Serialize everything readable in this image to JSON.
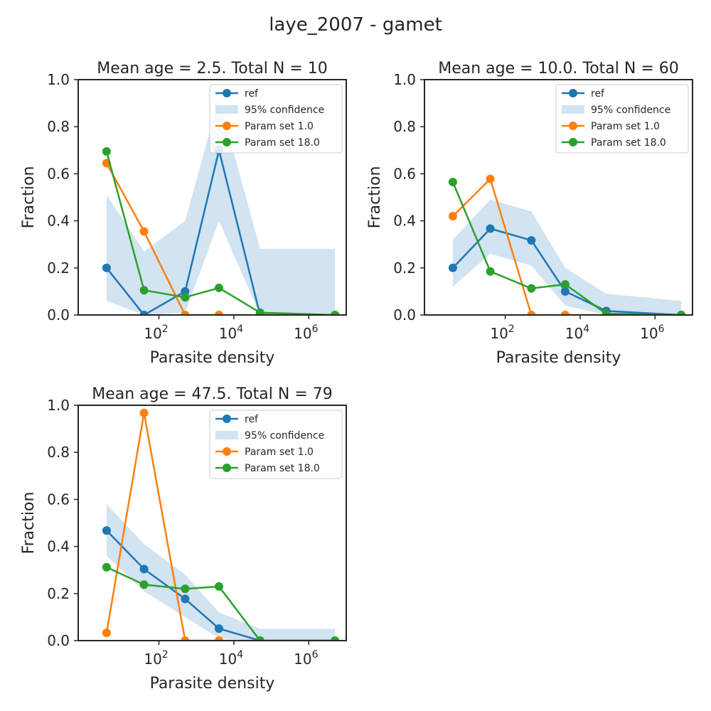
{
  "suptitle": "laye_2007 - gamet",
  "colors": {
    "ref": "#1f77b4",
    "band": "#b7d2e8",
    "param1": "#ff7f0e",
    "param18": "#2ca02c",
    "axis": "#262626"
  },
  "chart_data": [
    {
      "type": "line",
      "title": "Mean age = 2.5.  Total N = 10",
      "xlabel": "Parasite density",
      "ylabel": "Fraction",
      "xscale": "log",
      "xlim": [
        0.7,
        10000000
      ],
      "ylim": [
        0,
        1
      ],
      "xticks": [
        "10^2",
        "10^4",
        "10^6"
      ],
      "yticks": [
        "0.0",
        "0.2",
        "0.4",
        "0.6",
        "0.8",
        "1.0"
      ],
      "x": [
        4,
        40,
        500,
        4000,
        50000,
        5000000
      ],
      "legend": {
        "position": "top-right",
        "entries": [
          "ref",
          "95% confidence",
          "Param set 1.0",
          "Param set 18.0"
        ]
      },
      "series": [
        {
          "name": "ref",
          "values": [
            0.2,
            0.0,
            0.1,
            0.7,
            0.0,
            0.0
          ]
        },
        {
          "name": "95% confidence",
          "lower": [
            0.06,
            0.0,
            0.01,
            0.4,
            0.0,
            0.0
          ],
          "upper": [
            0.51,
            0.27,
            0.4,
            0.92,
            0.28,
            0.28
          ]
        },
        {
          "name": "Param set 1.0",
          "values": [
            0.645,
            0.355,
            0.0,
            0.0,
            0.0,
            0.0
          ]
        },
        {
          "name": "Param set 18.0",
          "values": [
            0.695,
            0.105,
            0.075,
            0.115,
            0.01,
            0.0
          ]
        }
      ]
    },
    {
      "type": "line",
      "title": "Mean age = 10.0.  Total N = 60",
      "xlabel": "Parasite density",
      "ylabel": "Fraction",
      "xscale": "log",
      "xlim": [
        0.7,
        10000000
      ],
      "ylim": [
        0,
        1
      ],
      "xticks": [
        "10^2",
        "10^4",
        "10^6"
      ],
      "yticks": [
        "0.0",
        "0.2",
        "0.4",
        "0.6",
        "0.8",
        "1.0"
      ],
      "x": [
        4,
        40,
        500,
        4000,
        50000,
        5000000
      ],
      "legend": {
        "position": "top-right",
        "entries": [
          "ref",
          "95% confidence",
          "Param set 1.0",
          "Param set 18.0"
        ]
      },
      "series": [
        {
          "name": "ref",
          "values": [
            0.2,
            0.367,
            0.317,
            0.1,
            0.017,
            0.0
          ]
        },
        {
          "name": "95% confidence",
          "lower": [
            0.12,
            0.26,
            0.21,
            0.04,
            0.0,
            0.0
          ],
          "upper": [
            0.32,
            0.49,
            0.44,
            0.2,
            0.09,
            0.06
          ]
        },
        {
          "name": "Param set 1.0",
          "values": [
            0.42,
            0.578,
            0.0,
            0.0,
            0.0,
            0.0
          ]
        },
        {
          "name": "Param set 18.0",
          "values": [
            0.565,
            0.185,
            0.113,
            0.13,
            0.005,
            0.0
          ]
        }
      ]
    },
    {
      "type": "line",
      "title": "Mean age = 47.5.  Total N = 79",
      "xlabel": "Parasite density",
      "ylabel": "Fraction",
      "xscale": "log",
      "xlim": [
        0.7,
        10000000
      ],
      "ylim": [
        0,
        1
      ],
      "xticks": [
        "10^2",
        "10^4",
        "10^6"
      ],
      "yticks": [
        "0.0",
        "0.2",
        "0.4",
        "0.6",
        "0.8",
        "1.0"
      ],
      "x": [
        4,
        40,
        500,
        4000,
        50000,
        5000000
      ],
      "legend": {
        "position": "top-right",
        "entries": [
          "ref",
          "95% confidence",
          "Param set 1.0",
          "Param set 18.0"
        ]
      },
      "series": [
        {
          "name": "ref",
          "values": [
            0.468,
            0.304,
            0.177,
            0.051,
            0.0,
            0.0
          ]
        },
        {
          "name": "95% confidence",
          "lower": [
            0.36,
            0.21,
            0.1,
            0.01,
            0.0,
            0.0
          ],
          "upper": [
            0.58,
            0.41,
            0.28,
            0.12,
            0.05,
            0.05
          ]
        },
        {
          "name": "Param set 1.0",
          "values": [
            0.033,
            0.967,
            0.0,
            0.0,
            0.0,
            0.0
          ]
        },
        {
          "name": "Param set 18.0",
          "values": [
            0.312,
            0.238,
            0.22,
            0.23,
            0.0,
            0.0
          ]
        }
      ]
    }
  ]
}
